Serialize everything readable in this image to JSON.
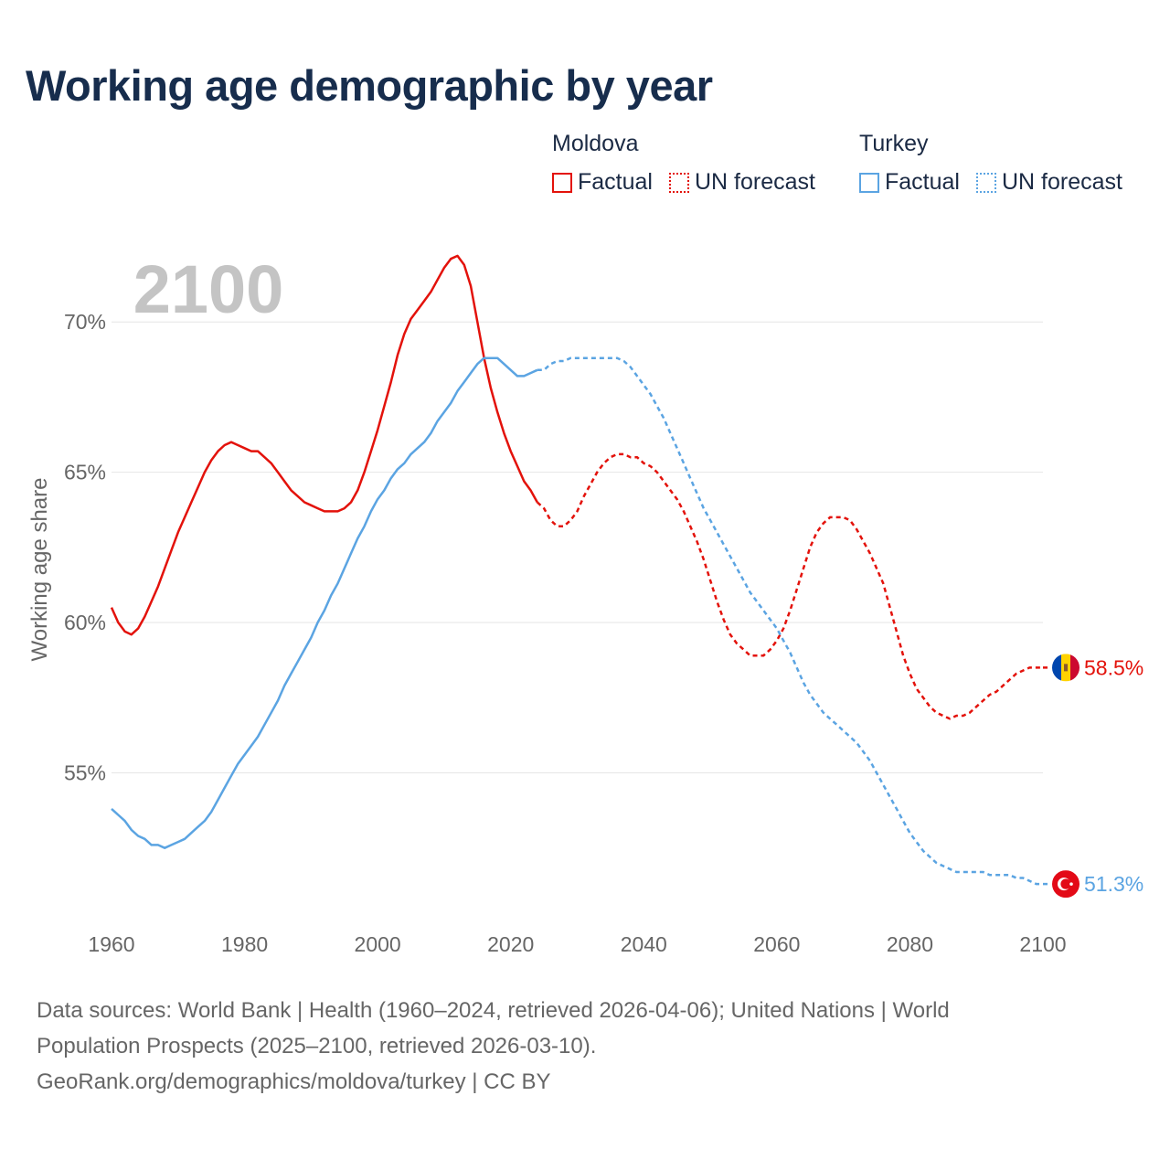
{
  "title": "Working age demographic by year",
  "legend": {
    "groups": [
      {
        "name": "Moldova",
        "color": "#e3120b",
        "factual_label": "Factual",
        "forecast_label": "UN forecast"
      },
      {
        "name": "Turkey",
        "color": "#5ba4e2",
        "factual_label": "Factual",
        "forecast_label": "UN forecast"
      }
    ]
  },
  "footer": {
    "line1": "Data sources: World Bank | Health (1960–2024, retrieved 2026-04-06); United Nations | World",
    "line2": "Population Prospects (2025–2100, retrieved 2026-03-10).",
    "line3": "GeoRank.org/demographics/moldova/turkey | CC BY"
  },
  "chart_data": {
    "type": "line",
    "year_watermark": "2100",
    "ylabel": "Working age share",
    "xlabel": "",
    "xlim": [
      1960,
      2100
    ],
    "ylim": [
      50.3,
      72.5
    ],
    "x_ticks": [
      1960,
      1980,
      2000,
      2020,
      2040,
      2060,
      2080,
      2100
    ],
    "y_ticks": [
      55,
      60,
      65,
      70
    ],
    "y_tick_labels": [
      "55%",
      "60%",
      "65%",
      "70%"
    ],
    "factual_end_year": 2024,
    "series": [
      {
        "name": "Moldova",
        "color": "#e3120b",
        "end_label": "58.5%",
        "flag": "moldova-flag",
        "x": [
          1960,
          1961,
          1962,
          1963,
          1964,
          1965,
          1966,
          1967,
          1968,
          1969,
          1970,
          1971,
          1972,
          1973,
          1974,
          1975,
          1976,
          1977,
          1978,
          1979,
          1980,
          1981,
          1982,
          1983,
          1984,
          1985,
          1986,
          1987,
          1988,
          1989,
          1990,
          1991,
          1992,
          1993,
          1994,
          1995,
          1996,
          1997,
          1998,
          1999,
          2000,
          2001,
          2002,
          2003,
          2004,
          2005,
          2006,
          2007,
          2008,
          2009,
          2010,
          2011,
          2012,
          2013,
          2014,
          2015,
          2016,
          2017,
          2018,
          2019,
          2020,
          2021,
          2022,
          2023,
          2024,
          2025,
          2026,
          2027,
          2028,
          2029,
          2030,
          2031,
          2032,
          2033,
          2034,
          2035,
          2036,
          2037,
          2038,
          2039,
          2040,
          2041,
          2042,
          2043,
          2044,
          2045,
          2046,
          2047,
          2048,
          2049,
          2050,
          2051,
          2052,
          2053,
          2054,
          2055,
          2056,
          2057,
          2058,
          2059,
          2060,
          2061,
          2062,
          2063,
          2064,
          2065,
          2066,
          2067,
          2068,
          2069,
          2070,
          2071,
          2072,
          2073,
          2074,
          2075,
          2076,
          2077,
          2078,
          2079,
          2080,
          2081,
          2082,
          2083,
          2084,
          2085,
          2086,
          2087,
          2088,
          2089,
          2090,
          2091,
          2092,
          2093,
          2094,
          2095,
          2096,
          2097,
          2098,
          2099,
          2100
        ],
        "values": [
          60.5,
          60.0,
          59.7,
          59.6,
          59.8,
          60.2,
          60.7,
          61.2,
          61.8,
          62.4,
          63.0,
          63.5,
          64.0,
          64.5,
          65.0,
          65.4,
          65.7,
          65.9,
          66.0,
          65.9,
          65.8,
          65.7,
          65.7,
          65.5,
          65.3,
          65.0,
          64.7,
          64.4,
          64.2,
          64.0,
          63.9,
          63.8,
          63.7,
          63.7,
          63.7,
          63.8,
          64.0,
          64.4,
          65.0,
          65.7,
          66.4,
          67.2,
          68.0,
          68.9,
          69.6,
          70.1,
          70.4,
          70.7,
          71.0,
          71.4,
          71.8,
          72.1,
          72.2,
          71.9,
          71.2,
          70.0,
          68.8,
          67.8,
          67.0,
          66.3,
          65.7,
          65.2,
          64.7,
          64.4,
          64.0,
          63.8,
          63.4,
          63.2,
          63.2,
          63.4,
          63.7,
          64.2,
          64.6,
          65.0,
          65.3,
          65.5,
          65.6,
          65.6,
          65.5,
          65.5,
          65.3,
          65.2,
          65.0,
          64.7,
          64.4,
          64.1,
          63.7,
          63.2,
          62.7,
          62.1,
          61.4,
          60.7,
          60.1,
          59.6,
          59.3,
          59.1,
          58.9,
          58.9,
          58.9,
          59.1,
          59.4,
          59.8,
          60.4,
          61.1,
          61.8,
          62.5,
          63.0,
          63.3,
          63.5,
          63.5,
          63.5,
          63.4,
          63.1,
          62.7,
          62.3,
          61.8,
          61.3,
          60.5,
          59.7,
          58.9,
          58.3,
          57.8,
          57.5,
          57.2,
          57.0,
          56.9,
          56.8,
          56.9,
          56.9,
          57.0,
          57.2,
          57.4,
          57.6,
          57.7,
          57.9,
          58.1,
          58.3,
          58.4,
          58.5,
          58.5,
          58.5
        ]
      },
      {
        "name": "Turkey",
        "color": "#5ba4e2",
        "end_label": "51.3%",
        "flag": "turkey-flag",
        "x": [
          1960,
          1961,
          1962,
          1963,
          1964,
          1965,
          1966,
          1967,
          1968,
          1969,
          1970,
          1971,
          1972,
          1973,
          1974,
          1975,
          1976,
          1977,
          1978,
          1979,
          1980,
          1981,
          1982,
          1983,
          1984,
          1985,
          1986,
          1987,
          1988,
          1989,
          1990,
          1991,
          1992,
          1993,
          1994,
          1995,
          1996,
          1997,
          1998,
          1999,
          2000,
          2001,
          2002,
          2003,
          2004,
          2005,
          2006,
          2007,
          2008,
          2009,
          2010,
          2011,
          2012,
          2013,
          2014,
          2015,
          2016,
          2017,
          2018,
          2019,
          2020,
          2021,
          2022,
          2023,
          2024,
          2025,
          2026,
          2027,
          2028,
          2029,
          2030,
          2031,
          2032,
          2033,
          2034,
          2035,
          2036,
          2037,
          2038,
          2039,
          2040,
          2041,
          2042,
          2043,
          2044,
          2045,
          2046,
          2047,
          2048,
          2049,
          2050,
          2051,
          2052,
          2053,
          2054,
          2055,
          2056,
          2057,
          2058,
          2059,
          2060,
          2061,
          2062,
          2063,
          2064,
          2065,
          2066,
          2067,
          2068,
          2069,
          2070,
          2071,
          2072,
          2073,
          2074,
          2075,
          2076,
          2077,
          2078,
          2079,
          2080,
          2081,
          2082,
          2083,
          2084,
          2085,
          2086,
          2087,
          2088,
          2089,
          2090,
          2091,
          2092,
          2093,
          2094,
          2095,
          2096,
          2097,
          2098,
          2099,
          2100
        ],
        "values": [
          53.8,
          53.6,
          53.4,
          53.1,
          52.9,
          52.8,
          52.6,
          52.6,
          52.5,
          52.6,
          52.7,
          52.8,
          53.0,
          53.2,
          53.4,
          53.7,
          54.1,
          54.5,
          54.9,
          55.3,
          55.6,
          55.9,
          56.2,
          56.6,
          57.0,
          57.4,
          57.9,
          58.3,
          58.7,
          59.1,
          59.5,
          60.0,
          60.4,
          60.9,
          61.3,
          61.8,
          62.3,
          62.8,
          63.2,
          63.7,
          64.1,
          64.4,
          64.8,
          65.1,
          65.3,
          65.6,
          65.8,
          66.0,
          66.3,
          66.7,
          67.0,
          67.3,
          67.7,
          68.0,
          68.3,
          68.6,
          68.8,
          68.8,
          68.8,
          68.6,
          68.4,
          68.2,
          68.2,
          68.3,
          68.4,
          68.4,
          68.6,
          68.7,
          68.7,
          68.8,
          68.8,
          68.8,
          68.8,
          68.8,
          68.8,
          68.8,
          68.8,
          68.7,
          68.5,
          68.2,
          67.9,
          67.6,
          67.2,
          66.8,
          66.3,
          65.8,
          65.3,
          64.8,
          64.3,
          63.8,
          63.4,
          63.0,
          62.6,
          62.2,
          61.8,
          61.4,
          61.0,
          60.7,
          60.4,
          60.1,
          59.8,
          59.4,
          59.0,
          58.5,
          58.0,
          57.6,
          57.3,
          57.0,
          56.8,
          56.6,
          56.4,
          56.2,
          56.0,
          55.7,
          55.4,
          55.0,
          54.6,
          54.2,
          53.8,
          53.4,
          53.0,
          52.7,
          52.4,
          52.2,
          52.0,
          51.9,
          51.8,
          51.7,
          51.7,
          51.7,
          51.7,
          51.7,
          51.6,
          51.6,
          51.6,
          51.6,
          51.5,
          51.5,
          51.4,
          51.3,
          51.3
        ]
      }
    ]
  }
}
